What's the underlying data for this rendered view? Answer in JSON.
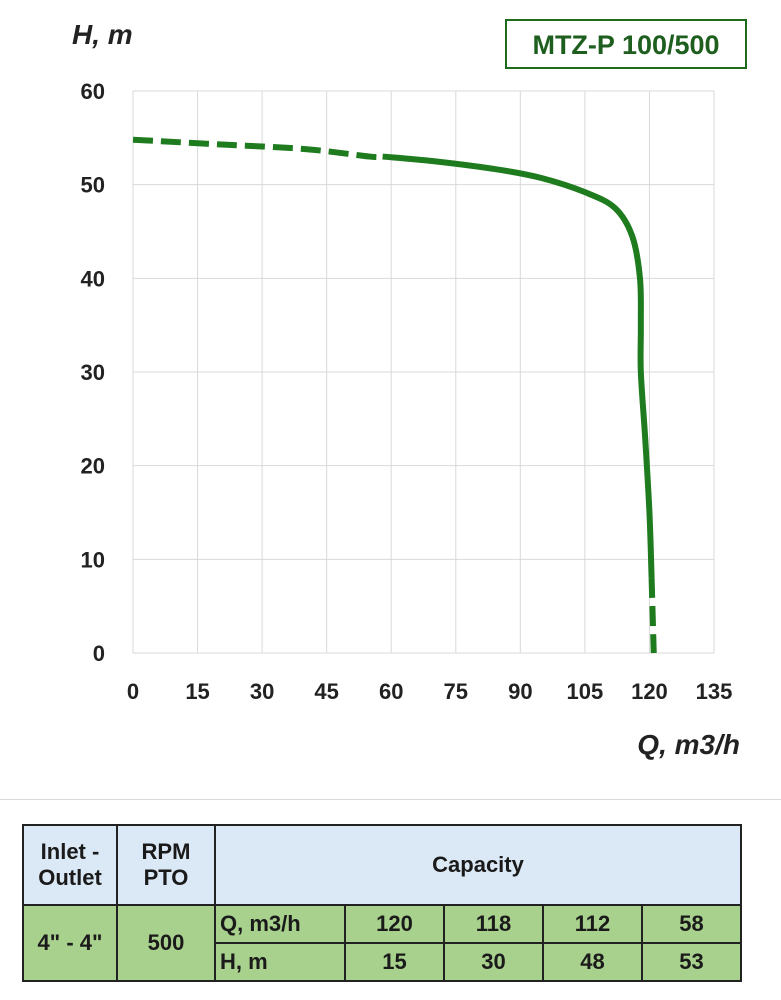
{
  "chart_data": {
    "type": "line",
    "title": "MTZ-P 100/500",
    "xlabel": "Q, m3/h",
    "ylabel": "H, m",
    "xlim": [
      0,
      135
    ],
    "ylim": [
      0,
      60
    ],
    "x_ticks": [
      "0",
      "15",
      "30",
      "45",
      "60",
      "75",
      "90",
      "105",
      "120",
      "135"
    ],
    "y_ticks": [
      "0",
      "10",
      "20",
      "30",
      "40",
      "50",
      "60"
    ],
    "grid": true,
    "legend": "none",
    "line_color": "#1e7b1e",
    "series": [
      {
        "points": [
          {
            "x": 0,
            "y": 54.8,
            "style": "dashed"
          },
          {
            "x": 20,
            "y": 54.3,
            "style": "dashed"
          },
          {
            "x": 40,
            "y": 53.8,
            "style": "dashed"
          },
          {
            "x": 55,
            "y": 53.0,
            "style": "dashed"
          },
          {
            "x": 58,
            "y": 53.0,
            "style": "solid"
          },
          {
            "x": 70,
            "y": 52.5,
            "style": "solid"
          },
          {
            "x": 85,
            "y": 51.6,
            "style": "solid"
          },
          {
            "x": 95,
            "y": 50.7,
            "style": "solid"
          },
          {
            "x": 105,
            "y": 49.2,
            "style": "solid"
          },
          {
            "x": 112,
            "y": 47.5,
            "style": "solid"
          },
          {
            "x": 116,
            "y": 44.5,
            "style": "solid"
          },
          {
            "x": 117.8,
            "y": 40.0,
            "style": "solid"
          },
          {
            "x": 118,
            "y": 35.0,
            "style": "solid"
          },
          {
            "x": 118,
            "y": 30.0,
            "style": "solid"
          },
          {
            "x": 119,
            "y": 23.0,
            "style": "solid"
          },
          {
            "x": 120,
            "y": 15.0,
            "style": "solid"
          },
          {
            "x": 120.5,
            "y": 8.0,
            "style": "dashed"
          },
          {
            "x": 121,
            "y": 0,
            "style": "dashed"
          }
        ]
      }
    ]
  },
  "table": {
    "header": {
      "inlet_line1": "Inlet -",
      "inlet_line2": "Outlet",
      "rpm_line1": "RPM",
      "rpm_line2": "PTO",
      "capacity": "Capacity"
    },
    "inlet_value": "4\" - 4\"",
    "rpm_value": "500",
    "q_label": "Q, m3/h",
    "h_label": "H, m",
    "q_values": [
      "120",
      "118",
      "112",
      "58"
    ],
    "h_values": [
      "15",
      "30",
      "48",
      "53"
    ]
  }
}
